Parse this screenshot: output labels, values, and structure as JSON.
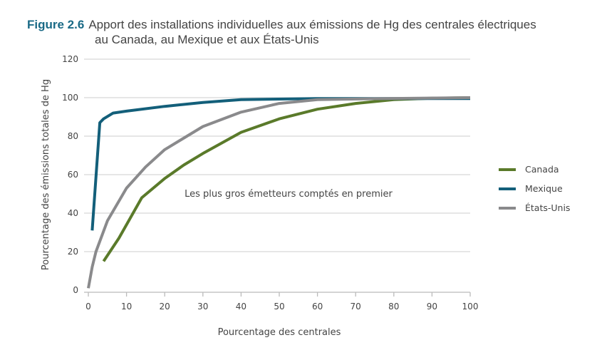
{
  "title": {
    "label": "Figure 2.6",
    "line1": "Apport des installations individuelles aux émissions de Hg des centrales électriques",
    "line2": "au Canada, au Mexique et aux États-Unis"
  },
  "chart_data": {
    "type": "line",
    "xlabel": "Pourcentage des centrales",
    "ylabel": "Pourcentage des émissions totales de Hg",
    "xlim": [
      0,
      100
    ],
    "ylim": [
      0,
      120
    ],
    "xticks": [
      0,
      10,
      20,
      30,
      40,
      50,
      60,
      70,
      80,
      90,
      100
    ],
    "yticks": [
      0,
      20,
      40,
      60,
      80,
      100,
      120
    ],
    "grid": "horizontal",
    "legend_placement": "right",
    "annotation": "Les plus gros émetteurs comptés en premier",
    "series": [
      {
        "name": "Canada",
        "color": "#5a7a2a",
        "points": [
          [
            4,
            15
          ],
          [
            8,
            27
          ],
          [
            14,
            48
          ],
          [
            20,
            58
          ],
          [
            25,
            65
          ],
          [
            30,
            71
          ],
          [
            40,
            82
          ],
          [
            50,
            89
          ],
          [
            60,
            94
          ],
          [
            70,
            97
          ],
          [
            80,
            99
          ],
          [
            90,
            99.7
          ],
          [
            100,
            100
          ]
        ]
      },
      {
        "name": "Mexique",
        "color": "#135f7a",
        "points": [
          [
            1,
            31
          ],
          [
            3,
            87
          ],
          [
            4,
            89
          ],
          [
            6.5,
            92
          ],
          [
            10,
            93
          ],
          [
            20,
            95.5
          ],
          [
            30,
            97.5
          ],
          [
            40,
            99
          ],
          [
            60,
            99.5
          ],
          [
            100,
            99.5
          ]
        ]
      },
      {
        "name": "États-Unis",
        "color": "#8a8a8c",
        "points": [
          [
            0,
            1
          ],
          [
            1,
            12
          ],
          [
            2,
            20
          ],
          [
            5,
            36
          ],
          [
            10,
            53
          ],
          [
            15,
            64
          ],
          [
            20,
            73
          ],
          [
            30,
            85
          ],
          [
            40,
            92.5
          ],
          [
            50,
            97
          ],
          [
            60,
            99
          ],
          [
            80,
            99.6
          ],
          [
            100,
            100
          ]
        ]
      }
    ]
  }
}
